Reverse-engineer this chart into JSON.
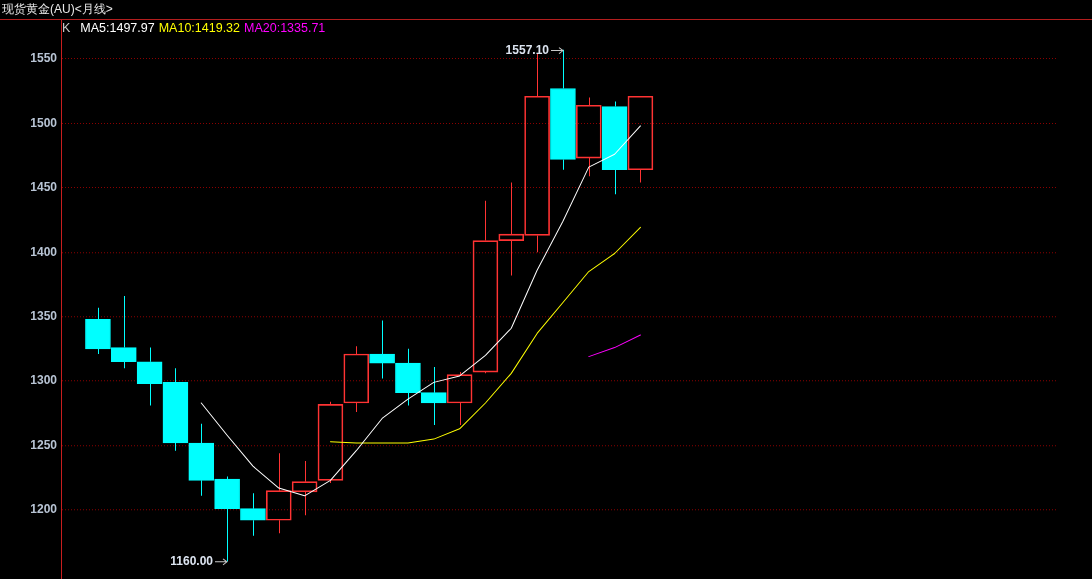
{
  "chart_data": {
    "type": "candlestick",
    "title": "现货黄金(AU)<月线>",
    "legend_title": "K",
    "categories": [
      null,
      null,
      null,
      null,
      null,
      null,
      null,
      null,
      null,
      null,
      null,
      null,
      null,
      null,
      null,
      null,
      null,
      null,
      null,
      null,
      null,
      null
    ],
    "ohlc": [
      [
        1348,
        1357,
        1321,
        1325
      ],
      [
        1326,
        1366,
        1310,
        1315
      ],
      [
        1315,
        1326,
        1281,
        1298
      ],
      [
        1299,
        1310,
        1246,
        1252
      ],
      [
        1252,
        1267,
        1211,
        1223
      ],
      [
        1224,
        1226,
        1160,
        1201
      ],
      [
        1201,
        1213,
        1180,
        1192
      ],
      [
        1192,
        1244,
        1182,
        1215
      ],
      [
        1214,
        1238,
        1196,
        1222
      ],
      [
        1223,
        1284,
        1221,
        1282
      ],
      [
        1283,
        1327,
        1276,
        1321
      ],
      [
        1321,
        1347,
        1302,
        1314
      ],
      [
        1314,
        1325,
        1281,
        1291
      ],
      [
        1291,
        1311,
        1266,
        1283
      ],
      [
        1283,
        1307,
        1266,
        1305
      ],
      [
        1307,
        1440,
        1306,
        1409
      ],
      [
        1409,
        1454,
        1382,
        1414
      ],
      [
        1413,
        1554,
        1400,
        1521
      ],
      [
        1527,
        1557.1,
        1464,
        1472
      ],
      [
        1473,
        1520,
        1459,
        1514
      ],
      [
        1513,
        1517,
        1445,
        1464
      ],
      [
        1464,
        1521,
        1454,
        1521
      ]
    ],
    "colors": [
      "#00ffff",
      "#00ffff",
      "#00ffff",
      "#00ffff",
      "#00ffff",
      "#00ffff",
      "#00ffff",
      "#ff3333",
      "#ff3333",
      "#ff3333",
      "#ff3333",
      "#00ffff",
      "#00ffff",
      "#00ffff",
      "#ff3333",
      "#ff3333",
      "#ff3333",
      "#ff3333",
      "#00ffff",
      "#ff3333",
      "#00ffff",
      "#ff3333"
    ],
    "series": [
      {
        "name": "MA5:1497.97",
        "type": "line",
        "color": "#ffffff",
        "values": [
          null,
          null,
          null,
          null,
          1283,
          1258,
          1234,
          1217,
          1211,
          1223,
          1246,
          1271,
          1286,
          1299,
          1304,
          1320,
          1341,
          1386,
          1424,
          1466,
          1476,
          1497.97
        ]
      },
      {
        "name": "MA10:1419.32",
        "type": "line",
        "color": "#ffff00",
        "values": [
          null,
          null,
          null,
          null,
          null,
          null,
          null,
          null,
          null,
          1253,
          1252,
          1252,
          1252,
          1255,
          1263,
          1283,
          1306,
          1337,
          1361,
          1385,
          1399,
          1419.32
        ]
      },
      {
        "name": "MA20:1335.71",
        "type": "line",
        "color": "#ff00ff",
        "values": [
          null,
          null,
          null,
          null,
          null,
          null,
          null,
          null,
          null,
          null,
          null,
          null,
          null,
          null,
          null,
          null,
          null,
          null,
          null,
          1319,
          1326,
          1335.71
        ]
      }
    ],
    "ylim": [
      1146,
      1580
    ],
    "yticks": [
      1200,
      1250,
      1300,
      1350,
      1400,
      1450,
      1500,
      1550
    ],
    "grid": "y",
    "legend": "top left",
    "tick_labels": "y",
    "marker": "none",
    "line_style": "solid",
    "annotations": [
      "1557.10",
      "1160.00"
    ]
  }
}
